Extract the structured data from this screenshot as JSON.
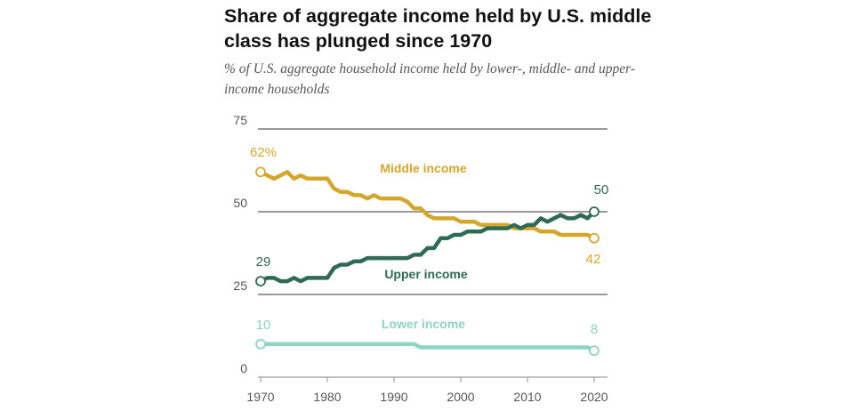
{
  "chart_data": {
    "type": "line",
    "title": "Share of aggregate income held by U.S. middle class has plunged since 1970",
    "subtitle": "% of U.S. aggregate household income held by lower-, middle- and upper-income households",
    "xlabel": "",
    "ylabel": "",
    "xlim": [
      1970,
      2020
    ],
    "ylim": [
      0,
      75
    ],
    "y_ticks": [
      0,
      25,
      50,
      75
    ],
    "x_ticks": [
      1970,
      1980,
      1990,
      2000,
      2010,
      2020
    ],
    "x_tick_labels": [
      "1970",
      "1980",
      "1990",
      "2000",
      "2010",
      "2020"
    ],
    "y_tick_labels": [
      "0",
      "25",
      "50",
      "75"
    ],
    "x": [
      1970,
      1971,
      1972,
      1973,
      1974,
      1975,
      1976,
      1977,
      1978,
      1979,
      1980,
      1981,
      1982,
      1983,
      1984,
      1985,
      1986,
      1987,
      1988,
      1989,
      1990,
      1991,
      1992,
      1993,
      1994,
      1995,
      1996,
      1997,
      1998,
      1999,
      2000,
      2001,
      2002,
      2003,
      2004,
      2005,
      2006,
      2007,
      2008,
      2009,
      2010,
      2011,
      2012,
      2013,
      2014,
      2015,
      2016,
      2017,
      2018,
      2019,
      2020
    ],
    "series": [
      {
        "name": "Middle income",
        "label": "Middle income",
        "color": "#d4a72c",
        "start_label": "62%",
        "end_label": "42",
        "values": [
          62,
          61,
          60,
          61,
          62,
          60,
          61,
          60,
          60,
          60,
          60,
          57,
          56,
          56,
          55,
          55,
          54,
          55,
          54,
          54,
          54,
          54,
          53,
          51,
          51,
          49,
          48,
          48,
          48,
          48,
          47,
          47,
          47,
          46,
          46,
          46,
          46,
          46,
          45,
          45,
          45,
          45,
          44,
          44,
          44,
          43,
          43,
          43,
          43,
          43,
          42
        ]
      },
      {
        "name": "Upper income",
        "label": "Upper income",
        "color": "#2e6b52",
        "start_label": "29",
        "end_label": "50",
        "values": [
          29,
          30,
          30,
          29,
          29,
          30,
          29,
          30,
          30,
          30,
          30,
          33,
          34,
          34,
          35,
          35,
          36,
          36,
          36,
          36,
          36,
          36,
          36,
          37,
          37,
          39,
          39,
          42,
          42,
          43,
          43,
          44,
          44,
          44,
          45,
          45,
          45,
          45,
          46,
          45,
          46,
          46,
          48,
          47,
          48,
          49,
          48,
          48,
          49,
          48,
          50
        ]
      },
      {
        "name": "Lower income",
        "label": "Lower income",
        "color": "#8fd4be",
        "start_label": "10",
        "end_label": "8",
        "values": [
          10,
          10,
          10,
          10,
          10,
          10,
          10,
          10,
          10,
          10,
          10,
          10,
          10,
          10,
          10,
          10,
          10,
          10,
          10,
          10,
          10,
          10,
          10,
          10,
          9,
          9,
          9,
          9,
          9,
          9,
          9,
          9,
          9,
          9,
          9,
          9,
          9,
          9,
          9,
          9,
          9,
          9,
          9,
          9,
          9,
          9,
          9,
          9,
          9,
          9,
          8
        ]
      }
    ]
  }
}
